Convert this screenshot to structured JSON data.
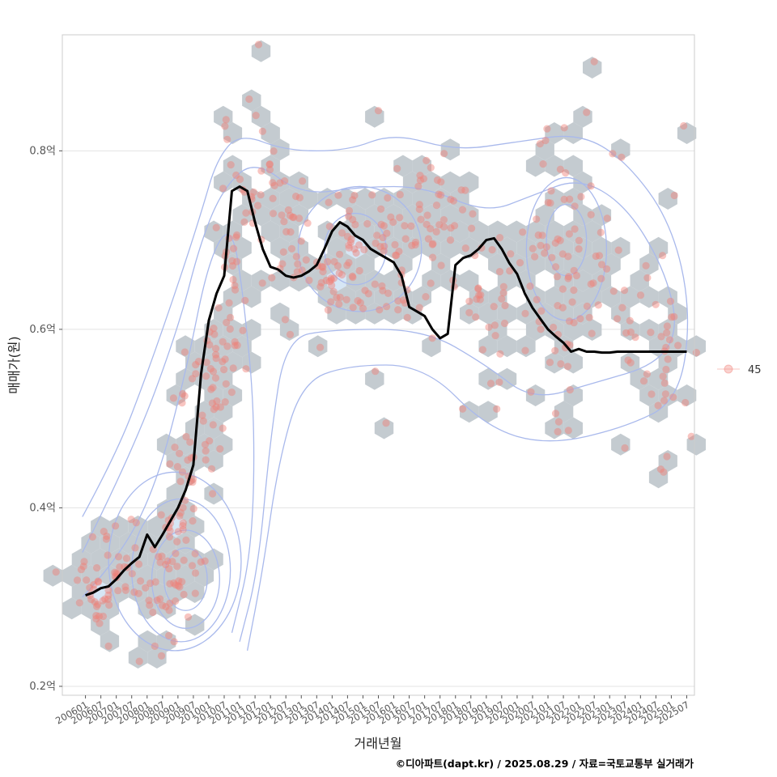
{
  "chart_data": {
    "type": "scatter",
    "xlabel": "거래년월",
    "ylabel": "매매가(원)",
    "caption": "©디아파트(dapt.kr) / 2025.08.29 / 자료=국토교통부 실거래가",
    "legend": {
      "label": "45",
      "placement": "right"
    },
    "ylim": [
      0.19,
      0.93
    ],
    "y_ticks": [
      {
        "value": 0.2,
        "label": "0.2억"
      },
      {
        "value": 0.4,
        "label": "0.4억"
      },
      {
        "value": 0.6,
        "label": "0.6억"
      },
      {
        "value": 0.8,
        "label": "0.8억"
      }
    ],
    "xlim": [
      -1.5,
      39.5
    ],
    "x_ticks": [
      "200601",
      "200607",
      "200701",
      "200707",
      "200801",
      "200807",
      "200901",
      "200907",
      "201001",
      "201007",
      "201101",
      "201107",
      "201201",
      "201207",
      "201301",
      "201307",
      "201401",
      "201407",
      "201501",
      "201507",
      "201601",
      "201607",
      "201701",
      "201707",
      "201801",
      "201807",
      "201901",
      "201907",
      "202001",
      "202007",
      "202101",
      "202107",
      "202201",
      "202207",
      "202301",
      "202307",
      "202401",
      "202407",
      "202501",
      "202507"
    ],
    "colors": {
      "points": "#f07e76",
      "hex": "#c4cbd0",
      "hex_light": "#d6e6f5",
      "contour": "#a9b9ec",
      "trend": "#000000",
      "grid": "#e3e3e3",
      "panel_border": "#cccccc"
    },
    "trend_line": {
      "x": [
        0,
        0.5,
        1,
        1.5,
        2,
        2.5,
        3,
        3.5,
        4,
        4.5,
        5,
        5.5,
        6,
        6.5,
        7,
        7.5,
        8,
        8.5,
        9,
        9.5,
        10,
        10.5,
        11,
        11.5,
        12,
        12.5,
        13,
        13.5,
        14,
        14.5,
        15,
        15.5,
        16,
        16.5,
        17,
        17.5,
        18,
        18.5,
        19,
        19.5,
        20,
        20.5,
        21,
        21.5,
        22,
        22.5,
        23,
        23.5,
        24,
        24.5,
        25,
        25.5,
        26,
        26.5,
        27,
        27.5,
        28,
        28.5,
        29,
        29.5,
        30,
        30.5,
        31,
        31.5,
        32,
        32.5,
        33,
        33.5,
        34,
        34.5,
        35,
        35.5,
        36,
        36.5,
        37,
        37.5,
        38,
        38.5,
        39
      ],
      "y": [
        0.302,
        0.305,
        0.31,
        0.312,
        0.32,
        0.33,
        0.338,
        0.345,
        0.37,
        0.356,
        0.37,
        0.385,
        0.4,
        0.42,
        0.448,
        0.55,
        0.61,
        0.64,
        0.66,
        0.755,
        0.76,
        0.755,
        0.72,
        0.69,
        0.67,
        0.667,
        0.66,
        0.658,
        0.66,
        0.665,
        0.672,
        0.69,
        0.71,
        0.72,
        0.715,
        0.705,
        0.7,
        0.69,
        0.685,
        0.68,
        0.675,
        0.66,
        0.625,
        0.62,
        0.615,
        0.6,
        0.59,
        0.595,
        0.672,
        0.68,
        0.683,
        0.69,
        0.7,
        0.702,
        0.69,
        0.674,
        0.662,
        0.64,
        0.624,
        0.612,
        0.6,
        0.592,
        0.585,
        0.575,
        0.578,
        0.575,
        0.575,
        0.574,
        0.574,
        0.575,
        0.575,
        0.575,
        0.575,
        0.575,
        0.575,
        0.575,
        0.575,
        0.575,
        0.575
      ]
    },
    "clusters": [
      {
        "x": 0.5,
        "y": 0.31,
        "sx": 0.9,
        "sy": 0.02,
        "n": 28
      },
      {
        "x": 2.5,
        "y": 0.33,
        "sx": 1.2,
        "sy": 0.025,
        "n": 30
      },
      {
        "x": 5.5,
        "y": 0.33,
        "sx": 0.9,
        "sy": 0.035,
        "n": 45
      },
      {
        "x": 6.8,
        "y": 0.42,
        "sx": 0.7,
        "sy": 0.05,
        "n": 38
      },
      {
        "x": 8.2,
        "y": 0.53,
        "sx": 0.8,
        "sy": 0.06,
        "n": 40
      },
      {
        "x": 9.4,
        "y": 0.66,
        "sx": 0.6,
        "sy": 0.07,
        "n": 30
      },
      {
        "x": 11,
        "y": 0.77,
        "sx": 1.1,
        "sy": 0.04,
        "n": 30
      },
      {
        "x": 13,
        "y": 0.7,
        "sx": 1.0,
        "sy": 0.05,
        "n": 26
      },
      {
        "x": 16,
        "y": 0.66,
        "sx": 1.4,
        "sy": 0.035,
        "n": 50
      },
      {
        "x": 20,
        "y": 0.7,
        "sx": 1.6,
        "sy": 0.05,
        "n": 60
      },
      {
        "x": 23,
        "y": 0.72,
        "sx": 1.4,
        "sy": 0.05,
        "n": 36
      },
      {
        "x": 26.5,
        "y": 0.62,
        "sx": 1.3,
        "sy": 0.05,
        "n": 34
      },
      {
        "x": 30.5,
        "y": 0.7,
        "sx": 1.0,
        "sy": 0.06,
        "n": 44
      },
      {
        "x": 30,
        "y": 0.56,
        "sx": 1.2,
        "sy": 0.04,
        "n": 20
      },
      {
        "x": 34,
        "y": 0.64,
        "sx": 1.3,
        "sy": 0.045,
        "n": 32
      },
      {
        "x": 37.5,
        "y": 0.57,
        "sx": 1.2,
        "sy": 0.05,
        "n": 32
      }
    ],
    "outliers": [
      {
        "x": 33,
        "y": 0.9
      },
      {
        "x": 19,
        "y": 0.845
      },
      {
        "x": 32.5,
        "y": 0.843
      },
      {
        "x": 38.8,
        "y": 0.828
      },
      {
        "x": 38.2,
        "y": 0.75
      },
      {
        "x": 37.5,
        "y": 0.44
      },
      {
        "x": 19.5,
        "y": 0.495
      },
      {
        "x": 1.5,
        "y": 0.245
      },
      {
        "x": 3.5,
        "y": 0.228
      },
      {
        "x": 4.5,
        "y": 0.245
      },
      {
        "x": 18.8,
        "y": 0.553
      },
      {
        "x": 39.3,
        "y": 0.48
      }
    ],
    "contours": [
      {
        "x": 6.5,
        "y": 0.32,
        "rx": 1.4,
        "ry": 0.035
      },
      {
        "x": 6.5,
        "y": 0.32,
        "rx": 2.2,
        "ry": 0.055
      },
      {
        "x": 6.2,
        "y": 0.33,
        "rx": 3.2,
        "ry": 0.08
      },
      {
        "x": 5.8,
        "y": 0.34,
        "rx": 4.3,
        "ry": 0.1
      },
      {
        "x": 17.5,
        "y": 0.69,
        "rx": 2.0,
        "ry": 0.04
      },
      {
        "x": 17.8,
        "y": 0.69,
        "rx": 4.0,
        "ry": 0.07
      },
      {
        "x": 31.2,
        "y": 0.7,
        "rx": 1.3,
        "ry": 0.04
      },
      {
        "x": 31.2,
        "y": 0.69,
        "rx": 2.6,
        "ry": 0.08
      }
    ],
    "density_outlines": [
      [
        [
          -0.2,
          0.39
        ],
        [
          2,
          0.46
        ],
        [
          4,
          0.55
        ],
        [
          6,
          0.65
        ],
        [
          7.5,
          0.73
        ],
        [
          8.5,
          0.79
        ],
        [
          10,
          0.82
        ],
        [
          13,
          0.8
        ],
        [
          17,
          0.8
        ],
        [
          20,
          0.82
        ],
        [
          24,
          0.8
        ],
        [
          28,
          0.81
        ],
        [
          32,
          0.82
        ],
        [
          35,
          0.79
        ],
        [
          38,
          0.72
        ],
        [
          39.3,
          0.62
        ],
        [
          38.5,
          0.52
        ],
        [
          35,
          0.49
        ],
        [
          30,
          0.47
        ],
        [
          26,
          0.49
        ],
        [
          22,
          0.56
        ],
        [
          17,
          0.56
        ],
        [
          14,
          0.54
        ],
        [
          12.5,
          0.45
        ],
        [
          11.5,
          0.33
        ],
        [
          10.5,
          0.24
        ]
      ],
      [
        [
          -0.2,
          0.35
        ],
        [
          3,
          0.46
        ],
        [
          6,
          0.6
        ],
        [
          7.5,
          0.7
        ],
        [
          9,
          0.76
        ],
        [
          11,
          0.79
        ],
        [
          14,
          0.75
        ],
        [
          18,
          0.76
        ],
        [
          22,
          0.76
        ],
        [
          26,
          0.73
        ],
        [
          29,
          0.75
        ],
        [
          32,
          0.77
        ],
        [
          35,
          0.74
        ],
        [
          37.5,
          0.67
        ],
        [
          38.5,
          0.6
        ],
        [
          37,
          0.56
        ],
        [
          33,
          0.54
        ],
        [
          29,
          0.52
        ],
        [
          26,
          0.56
        ],
        [
          22,
          0.6
        ],
        [
          16,
          0.6
        ],
        [
          13,
          0.59
        ],
        [
          12,
          0.48
        ],
        [
          11.2,
          0.33
        ],
        [
          10,
          0.25
        ]
      ],
      [
        [
          -0.2,
          0.3
        ],
        [
          2,
          0.34
        ],
        [
          4.5,
          0.42
        ],
        [
          6.5,
          0.55
        ],
        [
          8,
          0.68
        ],
        [
          9.5,
          0.72
        ],
        [
          10.3,
          0.63
        ],
        [
          11,
          0.5
        ],
        [
          10.8,
          0.35
        ],
        [
          9.5,
          0.26
        ]
      ]
    ]
  }
}
